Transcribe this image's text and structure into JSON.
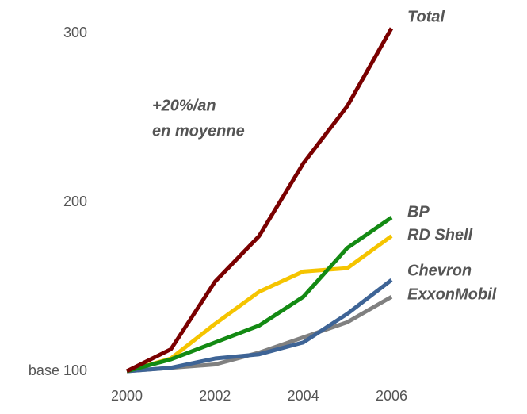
{
  "chart_data": {
    "type": "line",
    "x": [
      2000,
      2001,
      2002,
      2003,
      2004,
      2005,
      2006
    ],
    "xlim": [
      2000,
      2006
    ],
    "xticks": [
      2000,
      2002,
      2004,
      2006
    ],
    "ylim": [
      100,
      300
    ],
    "yticks": [
      {
        "value": 100,
        "label": "base 100"
      },
      200,
      300
    ],
    "annotation": [
      "+20%/an",
      "en moyenne"
    ],
    "series": [
      {
        "name": "Total",
        "color": "#7a0000",
        "values": [
          100,
          113,
          153,
          180,
          223,
          257,
          303
        ]
      },
      {
        "name": "BP",
        "color": "#138a13",
        "values": [
          100,
          107,
          117,
          127,
          144,
          173,
          191
        ]
      },
      {
        "name": "RD Shell",
        "color": "#f5c400",
        "values": [
          100,
          107.5,
          128,
          147,
          159,
          161,
          180
        ]
      },
      {
        "name": "Chevron",
        "color": "#3e6496",
        "values": [
          100,
          102,
          107.5,
          110,
          117,
          134,
          154
        ]
      },
      {
        "name": "ExxonMobil",
        "color": "#808080",
        "values": [
          100,
          102,
          104,
          111,
          120,
          129,
          144
        ]
      }
    ]
  }
}
